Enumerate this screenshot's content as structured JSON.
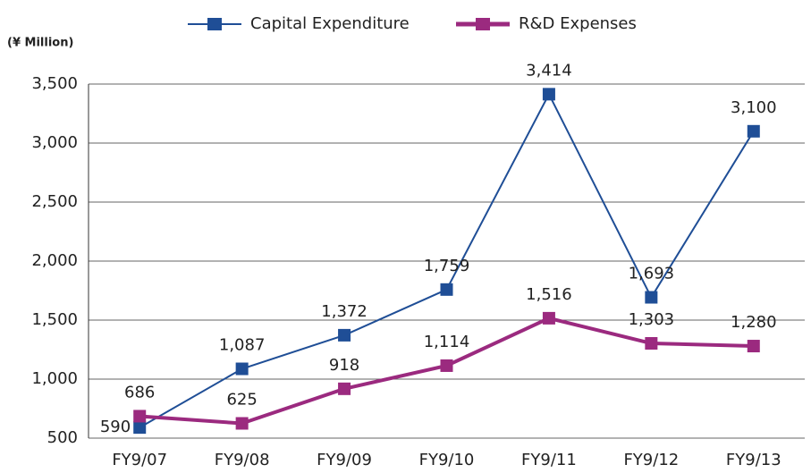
{
  "chart_data": {
    "type": "line",
    "y_axis_label": "(¥ Million)",
    "categories": [
      "FY9/07",
      "FY9/08",
      "FY9/09",
      "FY9/10",
      "FY9/11",
      "FY9/12",
      "FY9/13"
    ],
    "series": [
      {
        "name": "Capital Expenditure",
        "color": "#1f4e96",
        "values": [
          590,
          1087,
          1372,
          1759,
          3414,
          1693,
          3100
        ],
        "value_labels": [
          "590",
          "1,087",
          "1,372",
          "1,759",
          "3,414",
          "1,693",
          "3,100"
        ]
      },
      {
        "name": "R&D Expenses",
        "color": "#9b2a7f",
        "values": [
          686,
          625,
          918,
          1114,
          1516,
          1303,
          1280
        ],
        "value_labels": [
          "686",
          "625",
          "918",
          "1,114",
          "1,516",
          "1,303",
          "1,280"
        ]
      }
    ],
    "ylim": [
      500,
      3500
    ],
    "yticks": [
      500,
      {
        "value": 1000,
        "label": "1,000"
      },
      {
        "value": 1500,
        "label": "1,500"
      },
      {
        "value": 2000,
        "label": "2,000"
      },
      {
        "value": 2500,
        "label": "2,500"
      },
      {
        "value": 3000,
        "label": "3,000"
      },
      {
        "value": 3500,
        "label": "3,500"
      }
    ],
    "grid": true,
    "legend": "top"
  }
}
